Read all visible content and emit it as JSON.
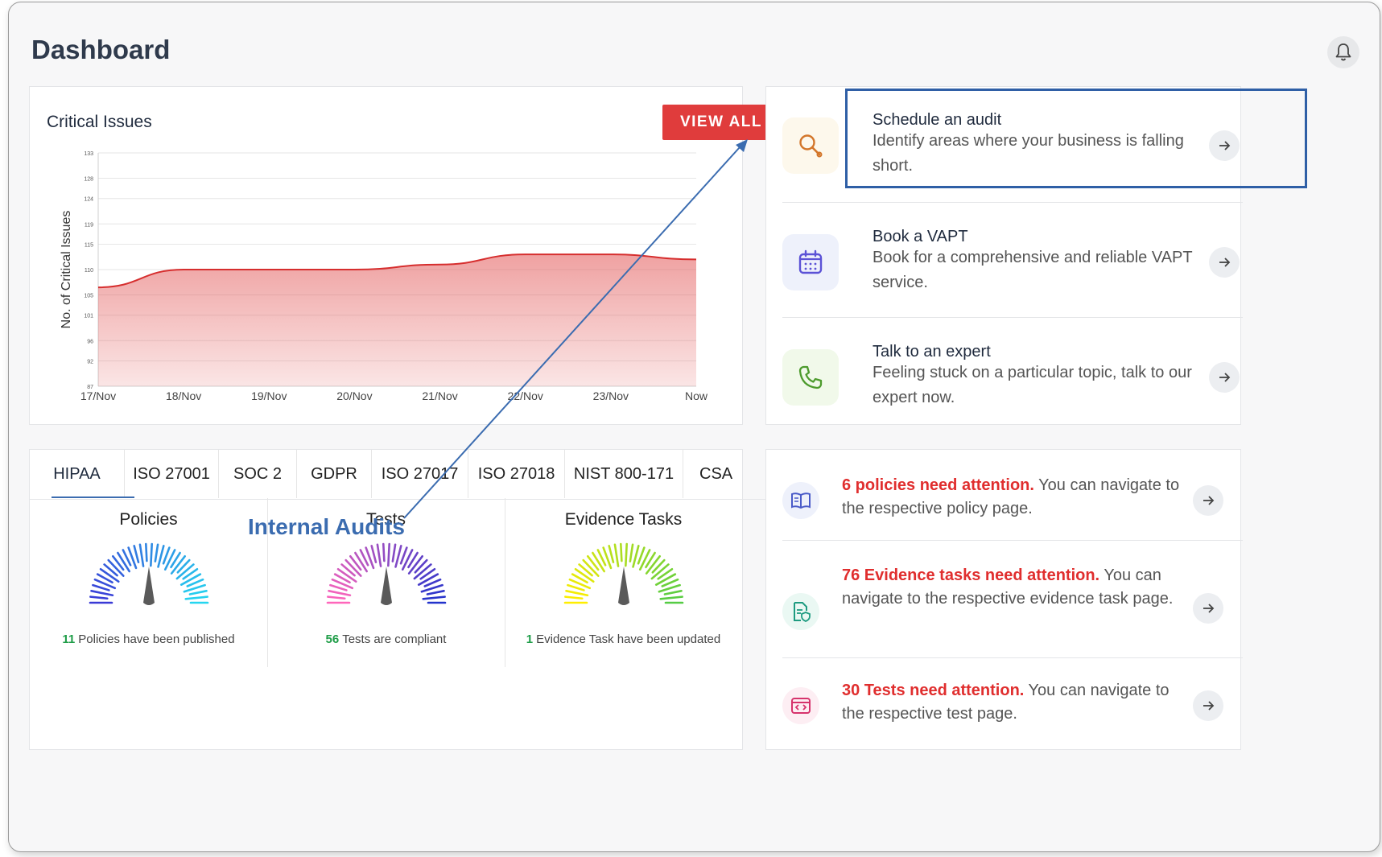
{
  "header": {
    "title": "Dashboard",
    "bell_icon": "bell-icon"
  },
  "critical_issues": {
    "title": "Critical Issues",
    "view_all_label": "VIEW ALL"
  },
  "chart_data": {
    "type": "area",
    "title": "Critical Issues",
    "xlabel": "",
    "ylabel": "No. of Critical Issues",
    "categories": [
      "17/Nov",
      "18/Nov",
      "19/Nov",
      "20/Nov",
      "21/Nov",
      "22/Nov",
      "23/Nov",
      "Now"
    ],
    "y_ticks": [
      "87",
      "92",
      "96",
      "101",
      "105",
      "110",
      "115",
      "119",
      "124",
      "128",
      "133"
    ],
    "ylim": [
      87,
      133
    ],
    "values": [
      106.5,
      110,
      110,
      110,
      111,
      113,
      113,
      112
    ],
    "grid": true,
    "color": "#e25555"
  },
  "frameworks": {
    "tabs": [
      "HIPAA",
      "ISO 27001",
      "SOC 2",
      "GDPR",
      "ISO 27017",
      "ISO 27018",
      "NIST 800-171",
      "CSA"
    ],
    "active_tab": "HIPAA",
    "next_icon": "chevron-right-icon"
  },
  "annotation": {
    "label": "Internal Audits",
    "color": "#3b6cb0"
  },
  "gauges": [
    {
      "title": "Policies",
      "count": "11",
      "caption": "Policies have been published",
      "colors": [
        "#3a3ad6",
        "#25d6f0"
      ]
    },
    {
      "title": "Tests",
      "count": "56",
      "caption": "Tests are compliant",
      "colors": [
        "#ff66bb",
        "#2233cc"
      ]
    },
    {
      "title": "Evidence Tasks",
      "count": "1",
      "caption": "Evidence Task have been updated",
      "colors": [
        "#ffee00",
        "#55cc44"
      ]
    }
  ],
  "actions": [
    {
      "title": "Schedule an audit",
      "desc": "Identify areas where your business is falling short.",
      "icon": "magnifier-icon",
      "bg": "#fdf8ec"
    },
    {
      "title": "Book a VAPT",
      "desc": "Book for a comprehensive and reliable VAPT service.",
      "icon": "calendar-icon",
      "bg": "#eef1fb"
    },
    {
      "title": "Talk to an expert",
      "desc": "Feeling stuck on a particular topic, talk to our expert now.",
      "icon": "phone-icon",
      "bg": "#f1f9ea"
    }
  ],
  "attention": [
    {
      "highlight": "6 policies need attention.",
      "text": " You can navigate to the respective policy page.",
      "icon": "book-icon",
      "bg": "#eef1fb"
    },
    {
      "highlight": "76 Evidence tasks need attention.",
      "text": " You can navigate to the respective evidence task page.",
      "icon": "document-shield-icon",
      "bg": "#eaf8f3"
    },
    {
      "highlight": "30 Tests need attention.",
      "text": " You can navigate to the respective test page.",
      "icon": "code-window-icon",
      "bg": "#fdeef3"
    }
  ]
}
